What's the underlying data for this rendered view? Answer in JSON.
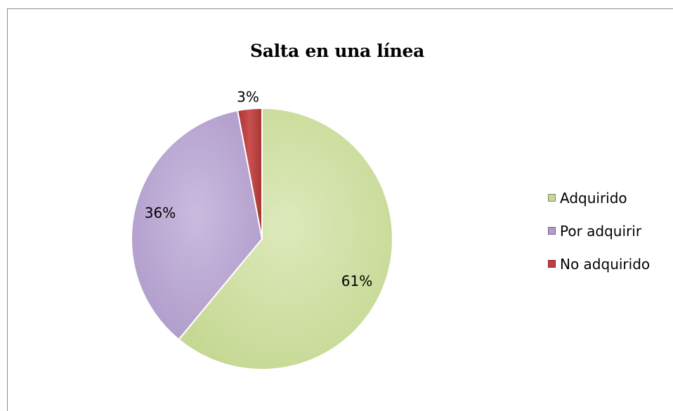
{
  "chart_data": {
    "type": "pie",
    "title": "Salta en una línea",
    "slices": [
      {
        "label": "Adquirido",
        "value": 61,
        "display": "61%",
        "color": "#d1e2a6"
      },
      {
        "label": "Por adquirir",
        "value": 36,
        "display": "36%",
        "color": "#bfaed6"
      },
      {
        "label": "No adquirido",
        "value": 3,
        "display": "3%",
        "color": "#c0403f"
      }
    ],
    "legend_position": "right"
  }
}
